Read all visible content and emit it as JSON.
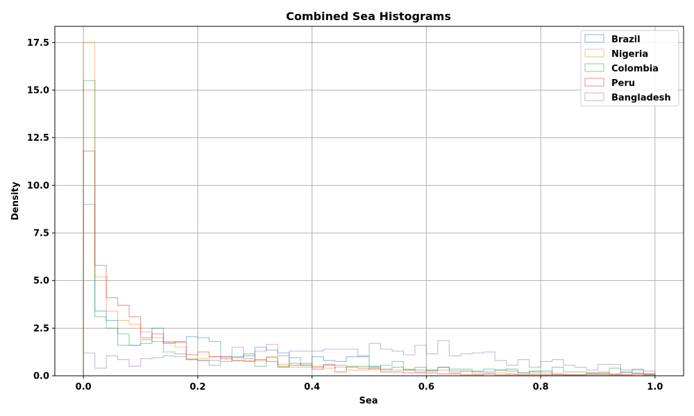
{
  "chart_data": {
    "type": "histogram",
    "title": "Combined Sea Histograms",
    "xlabel": "Sea",
    "ylabel": "Density",
    "xlim": [
      -0.05,
      1.05
    ],
    "ylim": [
      0,
      18.35
    ],
    "xticks": [
      "0.0",
      "0.2",
      "0.4",
      "0.6",
      "0.8",
      "1.0"
    ],
    "yticks": [
      "0.0",
      "2.5",
      "5.0",
      "7.5",
      "10.0",
      "12.5",
      "15.0",
      "17.5"
    ],
    "grid": true,
    "legend_position": "top-right",
    "bins": [
      0.0,
      0.02,
      0.04,
      0.06,
      0.08,
      0.1,
      0.12,
      0.14,
      0.16,
      0.18,
      0.2,
      0.22,
      0.24,
      0.26,
      0.28,
      0.3,
      0.32,
      0.34,
      0.36,
      0.38,
      0.4,
      0.42,
      0.44,
      0.46,
      0.48,
      0.5,
      0.52,
      0.54,
      0.56,
      0.58,
      0.6,
      0.62,
      0.64,
      0.66,
      0.68,
      0.7,
      0.72,
      0.74,
      0.76,
      0.78,
      0.8,
      0.82,
      0.84,
      0.86,
      0.88,
      0.9,
      0.92,
      0.94,
      0.96,
      0.98,
      1.0
    ],
    "series": [
      {
        "name": "Brazil",
        "color": "#1f77b4",
        "values": [
          9.0,
          3.4,
          2.9,
          1.6,
          1.6,
          1.7,
          2.5,
          1.7,
          1.8,
          2.05,
          2.0,
          1.8,
          1.0,
          1.0,
          1.05,
          1.5,
          1.35,
          1.2,
          0.65,
          0.55,
          1.0,
          0.8,
          0.75,
          1.0,
          1.0,
          0.5,
          0.35,
          0.45,
          0.3,
          0.3,
          0.25,
          0.45,
          0.25,
          0.25,
          0.2,
          0.2,
          0.3,
          0.35,
          0.15,
          0.2,
          0.25,
          0.05,
          0.05,
          0.05,
          0.1,
          0.1,
          0.1,
          0.2,
          0.15,
          0.1
        ]
      },
      {
        "name": "Nigeria",
        "color": "#ff7f0e",
        "values": [
          17.5,
          5.2,
          3.4,
          2.9,
          2.7,
          2.3,
          2.0,
          1.8,
          1.5,
          0.9,
          0.9,
          1.0,
          1.0,
          0.8,
          0.8,
          0.8,
          1.0,
          0.6,
          0.45,
          0.45,
          0.5,
          0.4,
          0.45,
          0.3,
          0.3,
          0.4,
          0.3,
          0.3,
          0.35,
          0.2,
          0.3,
          0.3,
          0.15,
          0.25,
          0.1,
          0.1,
          0.15,
          0.1,
          0.05,
          0.1,
          0.05,
          0.05,
          0.05,
          0.05,
          0.15,
          0.2,
          0.05,
          0.05,
          0.05,
          0.05
        ]
      },
      {
        "name": "Colombia",
        "color": "#2ca02c",
        "values": [
          15.5,
          3.1,
          2.5,
          2.2,
          1.6,
          1.9,
          1.8,
          1.25,
          1.15,
          0.85,
          0.8,
          0.55,
          0.75,
          0.95,
          1.15,
          0.5,
          0.95,
          0.5,
          0.95,
          0.55,
          0.45,
          0.55,
          0.55,
          0.5,
          0.5,
          0.45,
          0.55,
          0.75,
          0.3,
          0.45,
          0.3,
          0.45,
          0.35,
          0.35,
          0.25,
          0.35,
          0.3,
          0.25,
          0.15,
          0.25,
          0.15,
          0.45,
          0.2,
          0.2,
          0.15,
          0.15,
          0.4,
          0.15,
          0.35,
          0.1
        ]
      },
      {
        "name": "Peru",
        "color": "#d62728",
        "values": [
          11.8,
          5.8,
          4.1,
          3.7,
          3.1,
          2.0,
          2.2,
          1.75,
          1.75,
          1.1,
          1.25,
          1.0,
          0.9,
          0.8,
          0.75,
          0.85,
          0.75,
          0.45,
          0.55,
          0.65,
          0.35,
          0.6,
          0.2,
          0.45,
          0.4,
          0.35,
          0.2,
          0.2,
          0.15,
          0.15,
          0.15,
          0.1,
          0.1,
          0.05,
          0.05,
          0.1,
          0.05,
          0.05,
          0.05,
          0.05,
          0.05,
          0.1,
          0.05,
          0.05,
          0.05,
          0.05,
          0.05,
          0.05,
          0.1,
          0.05
        ]
      },
      {
        "name": "Bangladesh",
        "color": "#9467bd",
        "values": [
          1.2,
          0.4,
          1.05,
          0.85,
          0.5,
          0.9,
          0.95,
          1.05,
          1.0,
          0.85,
          0.8,
          0.8,
          1.0,
          1.5,
          0.9,
          1.3,
          1.65,
          1.05,
          1.3,
          1.3,
          1.3,
          1.4,
          1.4,
          1.4,
          1.05,
          1.7,
          1.4,
          1.3,
          1.1,
          1.6,
          1.15,
          1.85,
          1.05,
          1.15,
          1.2,
          1.25,
          0.8,
          0.55,
          0.85,
          0.45,
          0.75,
          0.85,
          0.55,
          0.45,
          0.3,
          0.6,
          0.6,
          0.3,
          0.3,
          0.25
        ]
      }
    ]
  }
}
